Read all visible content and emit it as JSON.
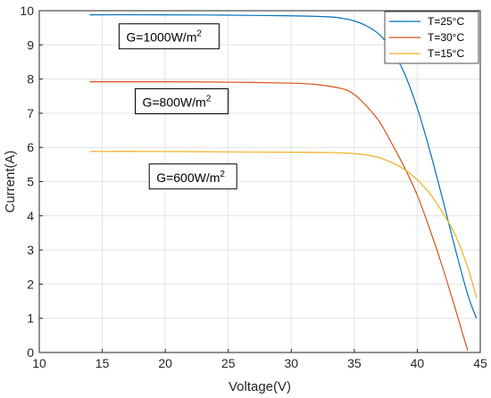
{
  "chart_data": {
    "type": "line",
    "xlabel": "Voltage(V)",
    "ylabel": "Current(A)",
    "xlim": [
      10,
      45
    ],
    "ylim": [
      0,
      10
    ],
    "xticks": [
      "10",
      "15",
      "20",
      "25",
      "30",
      "35",
      "40",
      "45"
    ],
    "yticks": [
      "0",
      "1",
      "2",
      "3",
      "4",
      "5",
      "6",
      "7",
      "8",
      "9",
      "10"
    ],
    "grid": true,
    "legend_position": "top-right",
    "series": [
      {
        "name": "T=25°C",
        "color": "#0072BD",
        "x": [
          14,
          20,
          25,
          30,
          33,
          34,
          35,
          36,
          37,
          38,
          39,
          40,
          41,
          42,
          43,
          44,
          44.7
        ],
        "y": [
          9.88,
          9.88,
          9.87,
          9.85,
          9.82,
          9.78,
          9.7,
          9.55,
          9.3,
          8.85,
          8.15,
          7.15,
          5.9,
          4.5,
          3.05,
          1.7,
          1.0
        ]
      },
      {
        "name": "T=30°C",
        "color": "#D95319",
        "x": [
          14,
          20,
          25,
          30,
          32,
          34,
          35,
          36,
          37,
          38,
          39,
          40,
          41,
          42,
          43,
          44
        ],
        "y": [
          7.92,
          7.92,
          7.91,
          7.88,
          7.84,
          7.72,
          7.55,
          7.2,
          6.75,
          6.1,
          5.4,
          4.6,
          3.6,
          2.5,
          1.3,
          0.05
        ]
      },
      {
        "name": "T=15°C",
        "color": "#EDB120",
        "x": [
          14,
          20,
          25,
          30,
          33,
          35,
          36,
          37,
          38,
          39,
          40,
          41,
          42,
          43,
          44,
          44.7
        ],
        "y": [
          5.88,
          5.88,
          5.87,
          5.86,
          5.85,
          5.82,
          5.78,
          5.7,
          5.55,
          5.35,
          5.05,
          4.65,
          4.1,
          3.45,
          2.5,
          1.6
        ]
      }
    ],
    "annotations": [
      {
        "text": "G=1000W/m",
        "sup": "2",
        "x": 20.3,
        "y": 9.25
      },
      {
        "text": "G=800W/m",
        "sup": "2",
        "x": 21.3,
        "y": 7.35
      },
      {
        "text": "G=600W/m",
        "sup": "2",
        "x": 22.2,
        "y": 5.15
      }
    ]
  }
}
